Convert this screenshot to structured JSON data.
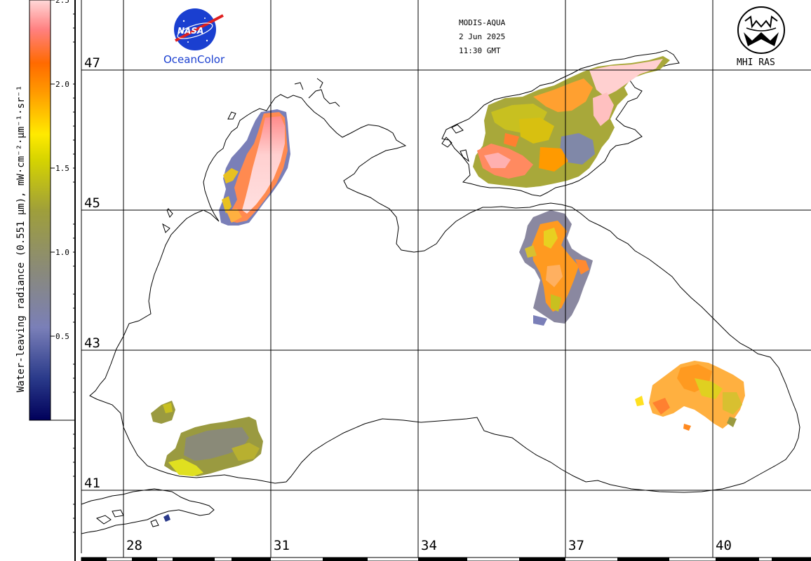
{
  "header": {
    "sensor": "MODIS-AQUA",
    "date": "2 Jun 2025",
    "time": "11:30 GMT"
  },
  "logos": {
    "nasa": {
      "text": "NASA",
      "caption": "OceanColor",
      "color": "#1a3fd0"
    },
    "mhi": {
      "caption": "MHI RAS"
    }
  },
  "colorbar": {
    "title": "Water-leaving radiance (0.551 μm), mW·cm⁻²·μm⁻¹·sr⁻¹",
    "tick_labels": [
      "2.5",
      "2.0",
      "1.5",
      "1.0",
      "0.5"
    ],
    "ticks": [
      2.5,
      2.0,
      1.5,
      1.0,
      0.5
    ],
    "min": 0.0,
    "max": 2.5,
    "stops": [
      "#00005a",
      "#2a3a8a",
      "#7a7fb8",
      "#8a8a78",
      "#9f9f3a",
      "#d6d400",
      "#ffea00",
      "#ff9a00",
      "#ff6a00",
      "#ff8080",
      "#ffd8d8"
    ]
  },
  "map": {
    "latitudes": [
      "47",
      "45",
      "43",
      "41"
    ],
    "longitudes": [
      "28",
      "31",
      "34",
      "37",
      "40"
    ],
    "land_color": "#ffffff",
    "coast_color": "#000000",
    "grid_color": "#000000",
    "regions": [
      "northwest-shelf-plume",
      "sea-of-azov",
      "kerch-outflow",
      "northeast-coast-patch",
      "southwest-coast-patch",
      "bosphorus-area-patch"
    ]
  }
}
